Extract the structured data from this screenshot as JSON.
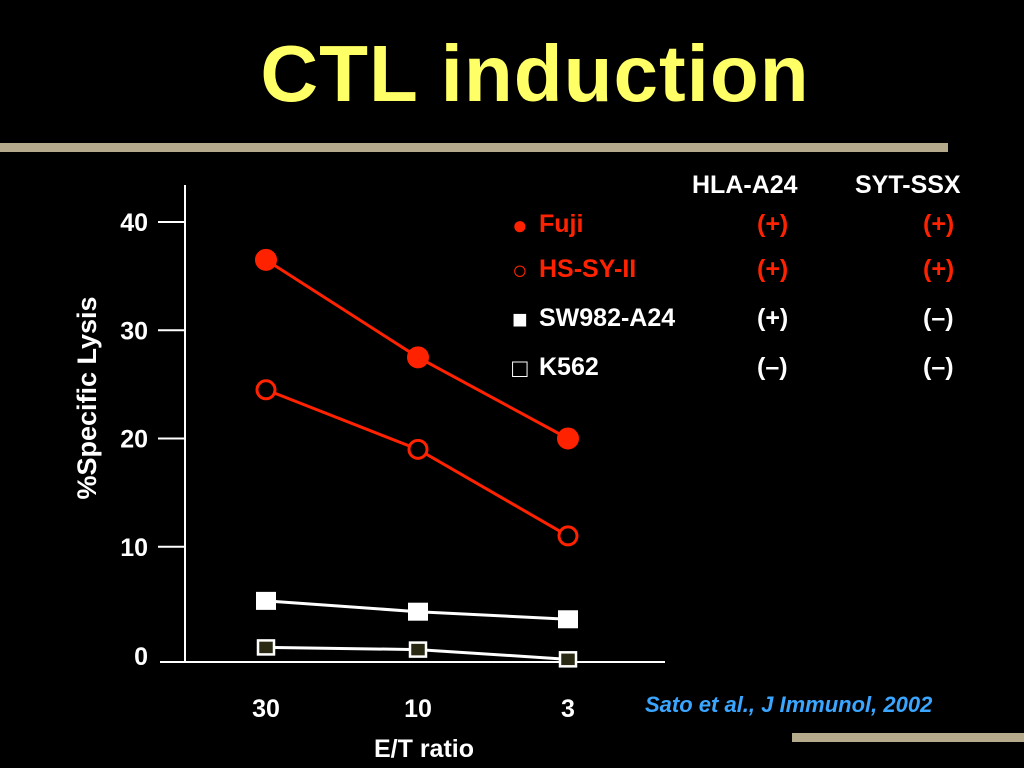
{
  "slide": {
    "title": "CTL induction",
    "citation": "Sato et al., J Immunol, 2002"
  },
  "colors": {
    "background": "#000000",
    "title": "#ffff66",
    "red_series": "#ff2200",
    "white_series": "#ffffff",
    "rule": "#b5aa8c",
    "citation": "#3aa6ff"
  },
  "legend": {
    "headers": [
      "HLA-A24",
      "SYT-SSX"
    ],
    "rows": [
      {
        "symbol": "●",
        "name": "Fuji",
        "hla": "(+)",
        "syt": "(+)",
        "color": "red"
      },
      {
        "symbol": "○",
        "name": "HS-SY-II",
        "hla": "(+)",
        "syt": "(+)",
        "color": "red"
      },
      {
        "symbol": "■",
        "name": "SW982-A24",
        "hla": "(+)",
        "syt": "(–)",
        "color": "white"
      },
      {
        "symbol": "□",
        "name": "K562",
        "hla": "(–)",
        "syt": "(–)",
        "color": "white"
      }
    ]
  },
  "chart_data": {
    "type": "line",
    "title": "",
    "xlabel": "E/T ratio",
    "ylabel": "%Specific Lysis",
    "categories": [
      "30",
      "10",
      "3"
    ],
    "yticks": [
      "0",
      "10",
      "20",
      "30",
      "40"
    ],
    "ylim": [
      0,
      40
    ],
    "grid": false,
    "series": [
      {
        "name": "Fuji",
        "marker": "filled-circle",
        "color": "#ff2200",
        "values": [
          36.5,
          27.5,
          20
        ]
      },
      {
        "name": "HS-SY-II",
        "marker": "open-circle",
        "color": "#ff2200",
        "values": [
          24.5,
          19,
          11
        ]
      },
      {
        "name": "SW982-A24",
        "marker": "filled-square",
        "color": "#ffffff",
        "values": [
          5,
          4,
          3.3
        ]
      },
      {
        "name": "K562",
        "marker": "open-square",
        "color": "#ffffff",
        "values": [
          0.7,
          0.5,
          -0.4
        ]
      }
    ]
  }
}
